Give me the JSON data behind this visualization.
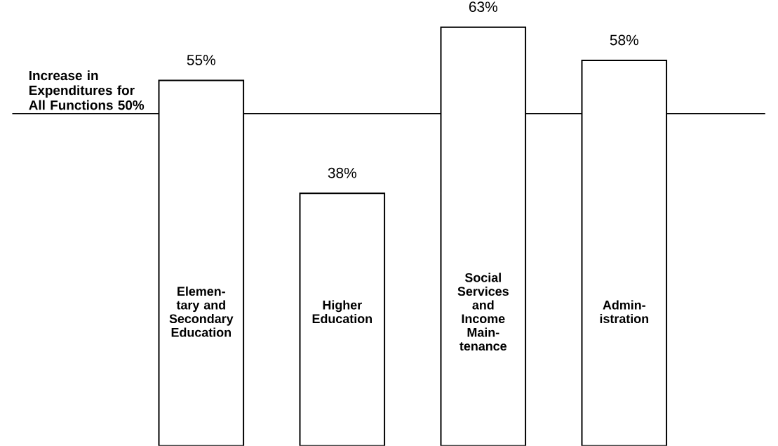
{
  "chart_data": {
    "type": "bar",
    "categories": [
      "Elemen-tary and Secondary Education",
      "Higher Education",
      "Social Services and Income Main-tenance",
      "Admin-istration"
    ],
    "values": [
      55,
      38,
      63,
      58
    ],
    "value_labels": [
      "55%",
      "38%",
      "63%",
      "58%"
    ],
    "color": "#ffffff",
    "tick_labels": "x",
    "ref_lines": [
      {
        "axis": "y",
        "value": 50,
        "label": "Increase in Expenditures for All Functions 50%",
        "color": "#000000",
        "line_style": "solid"
      }
    ]
  }
}
